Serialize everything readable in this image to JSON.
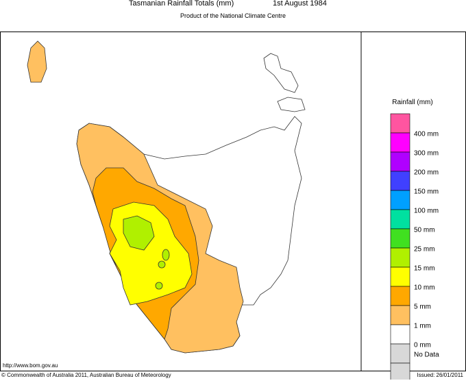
{
  "header": {
    "title": "Tasmanian Rainfall Totals (mm)",
    "date": "1st August 1984",
    "subtitle": "Product of the National Climate Centre"
  },
  "legend": {
    "title": "Rainfall (mm)",
    "items": [
      {
        "color": "#ff55a0"
      },
      {
        "label": "400 mm",
        "color": "#ff00ff"
      },
      {
        "label": "300 mm",
        "color": "#b000ff"
      },
      {
        "label": "200 mm",
        "color": "#4040ff"
      },
      {
        "label": "150 mm",
        "color": "#00a0ff"
      },
      {
        "label": "100 mm",
        "color": "#00e0a0"
      },
      {
        "label": "50 mm",
        "color": "#40e020"
      },
      {
        "label": "25 mm",
        "color": "#b0f000"
      },
      {
        "label": "15 mm",
        "color": "#ffff00"
      },
      {
        "label": "10 mm",
        "color": "#ffa800"
      },
      {
        "label": "5 mm",
        "color": "#ffc060"
      },
      {
        "label": "1 mm",
        "color": "#ffffff"
      },
      {
        "label": "0 mm",
        "color": "#d8d8d8"
      }
    ],
    "no_data": "No Data"
  },
  "footer": {
    "url": "http://www.bom.gov.au",
    "copyright": "© Commonwealth of Australia 2011, Australian Bureau of Meteorology",
    "issued": "Issued: 26/01/2011"
  }
}
